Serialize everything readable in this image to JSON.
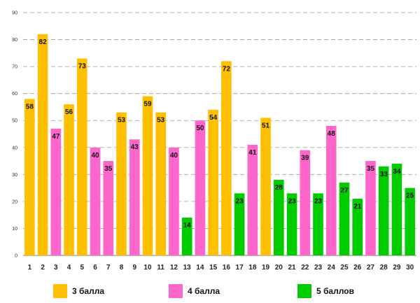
{
  "chart_data": {
    "type": "bar",
    "title": "",
    "xlabel": "",
    "ylabel": "",
    "ylim": [
      0,
      90
    ],
    "yticks": [
      0,
      10,
      20,
      30,
      40,
      50,
      60,
      70,
      80,
      90
    ],
    "grid": true,
    "categories": [
      "1",
      "2",
      "3",
      "4",
      "5",
      "6",
      "7",
      "8",
      "9",
      "10",
      "11",
      "12",
      "13",
      "14",
      "15",
      "16",
      "17",
      "18",
      "19",
      "20",
      "21",
      "22",
      "23",
      "24",
      "25",
      "26",
      "27",
      "28",
      "29",
      "30"
    ],
    "values": [
      58,
      82,
      47,
      56,
      73,
      40,
      35,
      53,
      43,
      59,
      53,
      40,
      14,
      50,
      54,
      72,
      23,
      41,
      51,
      28,
      23,
      39,
      23,
      48,
      27,
      21,
      35,
      33,
      34,
      25
    ],
    "groups": [
      "g3",
      "g3",
      "g4",
      "g3",
      "g3",
      "g4",
      "g4",
      "g3",
      "g4",
      "g3",
      "g3",
      "g4",
      "g5",
      "g4",
      "g3",
      "g3",
      "g5",
      "g4",
      "g3",
      "g5",
      "g5",
      "g4",
      "g5",
      "g4",
      "g5",
      "g5",
      "g4",
      "g5",
      "g5",
      "g5"
    ],
    "legend_position": "bottom",
    "legend": [
      {
        "key": "g3",
        "label": "3 балла",
        "color": "#FFC000"
      },
      {
        "key": "g4",
        "label": "4 балла",
        "color": "#FF66CC"
      },
      {
        "key": "g5",
        "label": "5 баллов",
        "color": "#00CC00"
      }
    ]
  }
}
